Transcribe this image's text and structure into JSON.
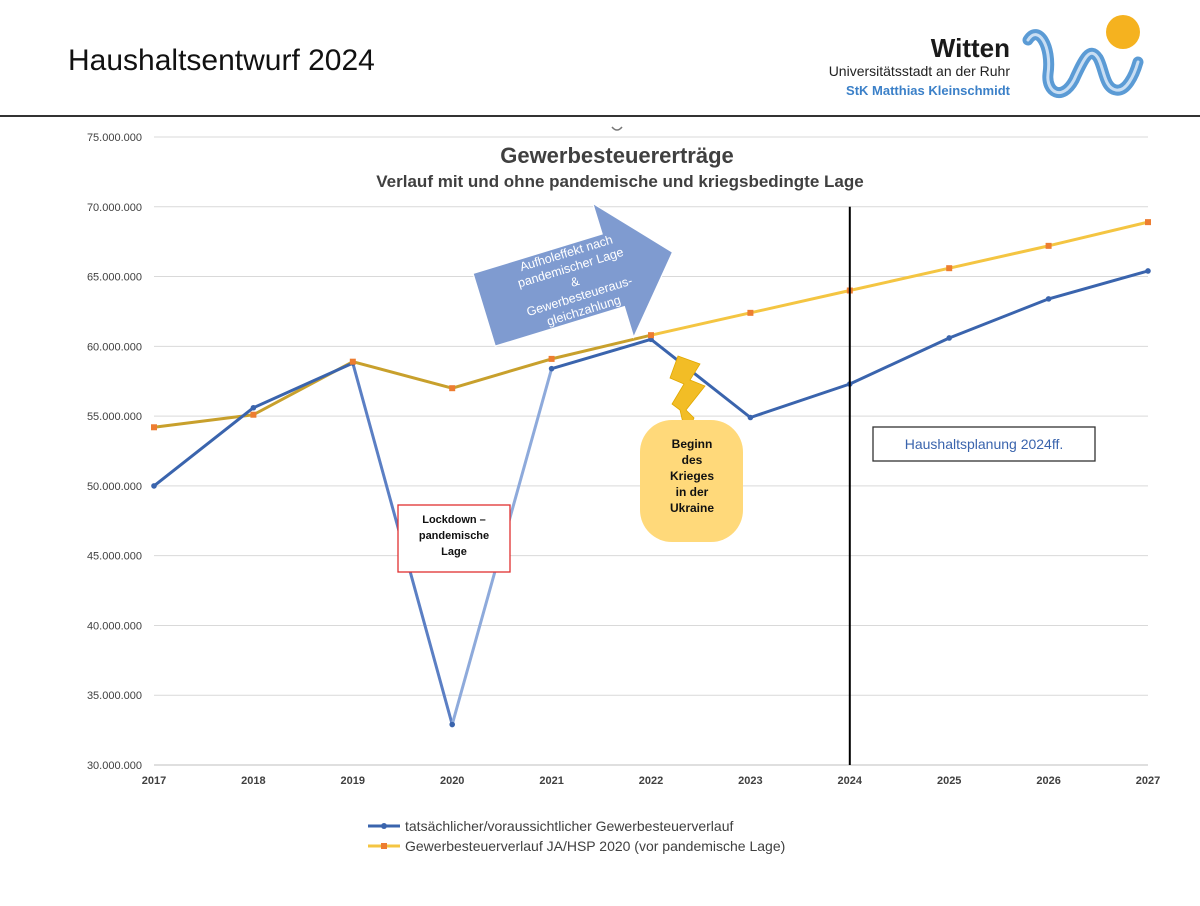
{
  "header": {
    "title": "Haushaltsentwurf 2024",
    "logo": {
      "city": "Witten",
      "subtitle": "Universitätsstadt an der Ruhr",
      "author": "StK Matthias Kleinschmidt"
    }
  },
  "colors": {
    "actual": "#3a64ad",
    "actual_dip": "#8eaadb",
    "plan": "#f4c542",
    "plan_early": "#c8a02c",
    "marker_plan": "#ed7d31",
    "grid": "#d9d9d9",
    "arrow": "#7f9bd0",
    "bubble": "#ffd97a",
    "bolt": "#f2bd26"
  },
  "chart_data": {
    "type": "line",
    "title": "Gewerbesteuererträge",
    "subtitle": "Verlauf mit und ohne pandemische und kriegsbedingte Lage",
    "xlabel": "",
    "ylabel": "",
    "x": [
      2017,
      2018,
      2019,
      2020,
      2021,
      2022,
      2023,
      2024,
      2025,
      2026,
      2027
    ],
    "ylim": [
      30000000,
      75000000
    ],
    "yticks": [
      30000000,
      35000000,
      40000000,
      45000000,
      50000000,
      55000000,
      60000000,
      65000000,
      70000000,
      75000000
    ],
    "ytick_labels": [
      "30.000.000",
      "35.000.000",
      "40.000.000",
      "45.000.000",
      "50.000.000",
      "55.000.000",
      "60.000.000",
      "65.000.000",
      "70.000.000",
      "75.000.000"
    ],
    "grid": true,
    "legend_position": "bottom",
    "series": [
      {
        "name": "tatsächlicher/voraussichtlicher Gewerbesteuerverlauf",
        "values": [
          50000000,
          55600000,
          58800000,
          32900000,
          58400000,
          60500000,
          54900000,
          57300000,
          60600000,
          63400000,
          65400000
        ]
      },
      {
        "name": "Gewerbesteuerverlauf JA/HSP 2020 (vor pandemische Lage)",
        "values": [
          54200000,
          55100000,
          58900000,
          57000000,
          59100000,
          60800000,
          62400000,
          64000000,
          65600000,
          67200000,
          68900000
        ]
      }
    ],
    "vertical_line_at": 2024,
    "annotations": {
      "lockdown": "Lockdown – pandemische Lage",
      "arrow_lines": [
        "Aufholeffekt nach",
        "pandemischer Lage",
        "&",
        "Gewerbesteueraus-",
        "gleichzahlung"
      ],
      "war_lines": [
        "Beginn",
        "des",
        "Krieges",
        "in der",
        "Ukraine"
      ],
      "planning": "Haushaltsplanung 2024ff."
    }
  }
}
